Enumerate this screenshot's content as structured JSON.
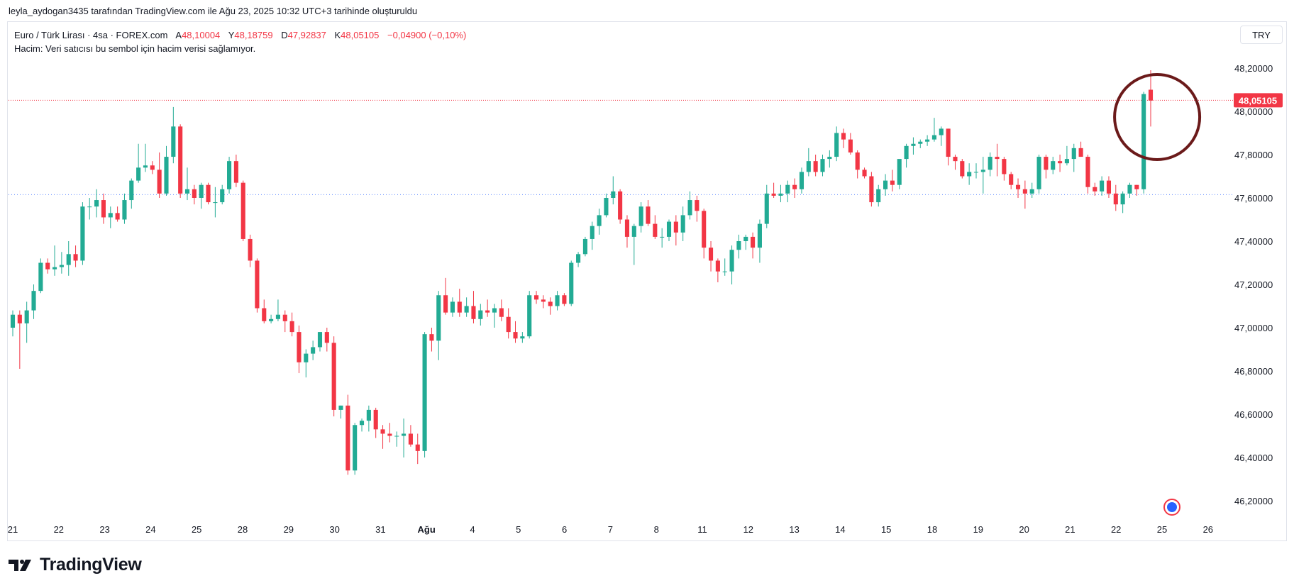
{
  "header": {
    "attribution": "leyla_aydogan3435 tarafından TradingView.com ile Ağu 23, 2025 10:32 UTC+3 tarihinde oluşturuldu"
  },
  "legend": {
    "symbol": "Euro / Türk Lirası · 4sa · FOREX.com",
    "open_label": "A",
    "open": "48,10004",
    "high_label": "Y",
    "high": "48,18759",
    "low_label": "D",
    "low": "47,92837",
    "close_label": "K",
    "close": "48,05105",
    "change": "−0,04900 (−0,10%)",
    "volume_note": "Hacim: Veri satıcısı bu sembol için hacim verisi sağlamıyor."
  },
  "currency_button": "TRY",
  "footer": {
    "brand": "TradingView"
  },
  "colors": {
    "up": "#22ab94",
    "down": "#f23645",
    "price_tag": "#f23645",
    "circle": "#6b1a1a"
  },
  "chart_data": {
    "type": "candlestick",
    "y_axis": {
      "ticks": [
        "48,20000",
        "48,00000",
        "47,80000",
        "47,60000",
        "47,40000",
        "47,20000",
        "47,00000",
        "46,80000",
        "46,60000",
        "46,40000",
        "46,20000"
      ],
      "tick_values": [
        48.2,
        48.0,
        47.8,
        47.6,
        47.4,
        47.2,
        47.0,
        46.8,
        46.6,
        46.4,
        46.2
      ],
      "range": [
        46.12,
        48.4
      ]
    },
    "x_axis": {
      "labels": [
        "21",
        "22",
        "23",
        "24",
        "25",
        "28",
        "29",
        "30",
        "31",
        "Ağu",
        "4",
        "5",
        "6",
        "7",
        "8",
        "11",
        "12",
        "13",
        "14",
        "15",
        "18",
        "19",
        "20",
        "21",
        "22",
        "25",
        "26"
      ],
      "bold_labels": [
        "Ağu"
      ]
    },
    "last_price": {
      "value": 48.05105,
      "label": "48,05105"
    },
    "dotted_level": 47.615,
    "annotation": "circle around latest candles",
    "candles": [
      [
        47.0,
        47.08,
        46.96,
        47.06
      ],
      [
        47.06,
        47.08,
        46.81,
        47.02
      ],
      [
        47.02,
        47.12,
        46.93,
        47.08
      ],
      [
        47.08,
        47.2,
        47.04,
        47.17
      ],
      [
        47.17,
        47.32,
        47.16,
        47.3
      ],
      [
        47.3,
        47.32,
        47.25,
        47.27
      ],
      [
        47.27,
        47.38,
        47.24,
        47.28
      ],
      [
        47.28,
        47.35,
        47.25,
        47.29
      ],
      [
        47.29,
        47.4,
        47.24,
        47.34
      ],
      [
        47.34,
        47.38,
        47.28,
        47.31
      ],
      [
        47.31,
        47.58,
        47.29,
        47.56
      ],
      [
        47.56,
        47.6,
        47.5,
        47.56
      ],
      [
        47.56,
        47.64,
        47.51,
        47.59
      ],
      [
        47.59,
        47.62,
        47.48,
        47.51
      ],
      [
        47.51,
        47.56,
        47.46,
        47.53
      ],
      [
        47.53,
        47.56,
        47.49,
        47.5
      ],
      [
        47.5,
        47.62,
        47.48,
        47.59
      ],
      [
        47.59,
        47.69,
        47.55,
        47.68
      ],
      [
        47.68,
        47.85,
        47.67,
        47.74
      ],
      [
        47.74,
        47.85,
        47.72,
        47.75
      ],
      [
        47.75,
        47.77,
        47.71,
        47.73
      ],
      [
        47.73,
        47.81,
        47.6,
        47.62
      ],
      [
        47.62,
        47.84,
        47.61,
        47.79
      ],
      [
        47.79,
        48.02,
        47.76,
        47.93
      ],
      [
        47.93,
        47.94,
        47.6,
        47.62
      ],
      [
        47.62,
        47.74,
        47.59,
        47.64
      ],
      [
        47.64,
        47.66,
        47.57,
        47.6
      ],
      [
        47.6,
        47.67,
        47.55,
        47.66
      ],
      [
        47.66,
        47.67,
        47.57,
        47.58
      ],
      [
        47.58,
        47.65,
        47.51,
        47.58
      ],
      [
        47.58,
        47.66,
        47.57,
        47.64
      ],
      [
        47.64,
        47.79,
        47.62,
        47.77
      ],
      [
        47.77,
        47.8,
        47.65,
        47.67
      ],
      [
        47.67,
        47.68,
        47.4,
        47.41
      ],
      [
        47.41,
        47.43,
        47.28,
        47.31
      ],
      [
        47.31,
        47.32,
        47.07,
        47.09
      ],
      [
        47.09,
        47.13,
        47.02,
        47.03
      ],
      [
        47.03,
        47.06,
        47.02,
        47.04
      ],
      [
        47.04,
        47.13,
        47.03,
        47.06
      ],
      [
        47.06,
        47.08,
        46.98,
        47.03
      ],
      [
        47.03,
        47.07,
        46.96,
        46.98
      ],
      [
        46.98,
        47.01,
        46.79,
        46.84
      ],
      [
        46.84,
        46.9,
        46.77,
        46.88
      ],
      [
        46.88,
        46.94,
        46.85,
        46.91
      ],
      [
        46.91,
        46.98,
        46.89,
        46.98
      ],
      [
        46.98,
        47.0,
        46.89,
        46.93
      ],
      [
        46.93,
        46.96,
        46.59,
        46.62
      ],
      [
        46.62,
        46.64,
        46.58,
        46.64
      ],
      [
        46.64,
        46.69,
        46.32,
        46.34
      ],
      [
        46.34,
        46.56,
        46.32,
        46.55
      ],
      [
        46.55,
        46.58,
        46.52,
        46.57
      ],
      [
        46.57,
        46.64,
        46.52,
        46.62
      ],
      [
        46.62,
        46.63,
        46.49,
        46.53
      ],
      [
        46.53,
        46.55,
        46.44,
        46.51
      ],
      [
        46.51,
        46.56,
        46.47,
        46.5
      ],
      [
        46.5,
        46.52,
        46.45,
        46.5
      ],
      [
        46.5,
        46.58,
        46.4,
        46.51
      ],
      [
        46.51,
        46.55,
        46.45,
        46.46
      ],
      [
        46.46,
        46.51,
        46.37,
        46.43
      ],
      [
        46.43,
        46.98,
        46.4,
        46.97
      ],
      [
        46.97,
        47.0,
        46.89,
        46.94
      ],
      [
        46.94,
        47.17,
        46.85,
        47.15
      ],
      [
        47.15,
        47.23,
        47.06,
        47.07
      ],
      [
        47.07,
        47.14,
        47.05,
        47.12
      ],
      [
        47.12,
        47.18,
        47.05,
        47.07
      ],
      [
        47.07,
        47.14,
        47.05,
        47.1
      ],
      [
        47.1,
        47.17,
        47.02,
        47.04
      ],
      [
        47.04,
        47.11,
        47.01,
        47.08
      ],
      [
        47.08,
        47.13,
        47.05,
        47.07
      ],
      [
        47.07,
        47.11,
        47.0,
        47.09
      ],
      [
        47.09,
        47.13,
        47.03,
        47.05
      ],
      [
        47.05,
        47.09,
        46.95,
        46.98
      ],
      [
        46.98,
        47.03,
        46.93,
        46.95
      ],
      [
        46.95,
        46.98,
        46.93,
        46.96
      ],
      [
        46.96,
        47.17,
        46.95,
        47.15
      ],
      [
        47.15,
        47.17,
        47.11,
        47.13
      ],
      [
        47.13,
        47.15,
        47.09,
        47.12
      ],
      [
        47.12,
        47.14,
        47.06,
        47.1
      ],
      [
        47.1,
        47.17,
        47.08,
        47.15
      ],
      [
        47.15,
        47.16,
        47.1,
        47.11
      ],
      [
        47.11,
        47.31,
        47.1,
        47.3
      ],
      [
        47.3,
        47.35,
        47.28,
        47.34
      ],
      [
        47.34,
        47.42,
        47.33,
        47.41
      ],
      [
        47.41,
        47.49,
        47.36,
        47.47
      ],
      [
        47.47,
        47.55,
        47.43,
        47.52
      ],
      [
        47.52,
        47.62,
        47.51,
        47.6
      ],
      [
        47.6,
        47.7,
        47.57,
        47.63
      ],
      [
        47.63,
        47.64,
        47.48,
        47.5
      ],
      [
        47.5,
        47.52,
        47.37,
        47.42
      ],
      [
        47.42,
        47.48,
        47.29,
        47.47
      ],
      [
        47.47,
        47.58,
        47.44,
        47.56
      ],
      [
        47.56,
        47.59,
        47.47,
        47.48
      ],
      [
        47.48,
        47.52,
        47.41,
        47.42
      ],
      [
        47.42,
        47.46,
        47.37,
        47.42
      ],
      [
        47.42,
        47.5,
        47.4,
        47.49
      ],
      [
        47.49,
        47.52,
        47.38,
        47.44
      ],
      [
        47.44,
        47.56,
        47.4,
        47.52
      ],
      [
        47.52,
        47.63,
        47.5,
        47.59
      ],
      [
        47.59,
        47.61,
        47.49,
        47.54
      ],
      [
        47.54,
        47.55,
        47.32,
        47.37
      ],
      [
        47.37,
        47.4,
        47.26,
        47.31
      ],
      [
        47.31,
        47.32,
        47.21,
        47.26
      ],
      [
        47.26,
        47.32,
        47.24,
        47.26
      ],
      [
        47.26,
        47.38,
        47.2,
        47.36
      ],
      [
        47.36,
        47.43,
        47.32,
        47.4
      ],
      [
        47.4,
        47.43,
        47.36,
        47.42
      ],
      [
        47.42,
        47.44,
        47.32,
        47.37
      ],
      [
        47.37,
        47.5,
        47.3,
        47.48
      ],
      [
        47.48,
        47.66,
        47.46,
        47.62
      ],
      [
        47.62,
        47.67,
        47.6,
        47.61
      ],
      [
        47.61,
        47.66,
        47.58,
        47.62
      ],
      [
        47.62,
        47.68,
        47.58,
        47.66
      ],
      [
        47.66,
        47.69,
        47.6,
        47.64
      ],
      [
        47.64,
        47.74,
        47.62,
        47.72
      ],
      [
        47.72,
        47.83,
        47.7,
        47.77
      ],
      [
        47.77,
        47.8,
        47.7,
        47.72
      ],
      [
        47.72,
        47.8,
        47.7,
        47.78
      ],
      [
        47.78,
        47.82,
        47.74,
        47.79
      ],
      [
        47.79,
        47.93,
        47.77,
        47.9
      ],
      [
        47.9,
        47.92,
        47.83,
        47.87
      ],
      [
        47.87,
        47.9,
        47.8,
        47.81
      ],
      [
        47.81,
        47.82,
        47.69,
        47.73
      ],
      [
        47.73,
        47.74,
        47.69,
        47.7
      ],
      [
        47.7,
        47.72,
        47.56,
        47.58
      ],
      [
        47.58,
        47.66,
        47.56,
        47.64
      ],
      [
        47.64,
        47.71,
        47.61,
        47.68
      ],
      [
        47.68,
        47.73,
        47.63,
        47.66
      ],
      [
        47.66,
        47.77,
        47.64,
        47.78
      ],
      [
        47.78,
        47.85,
        47.74,
        47.84
      ],
      [
        47.84,
        47.88,
        47.8,
        47.85
      ],
      [
        47.85,
        47.87,
        47.83,
        47.86
      ],
      [
        47.86,
        47.89,
        47.84,
        47.87
      ],
      [
        47.87,
        47.97,
        47.86,
        47.89
      ],
      [
        47.89,
        47.93,
        47.84,
        47.92
      ],
      [
        47.92,
        47.92,
        47.75,
        47.79
      ],
      [
        47.79,
        47.8,
        47.73,
        47.77
      ],
      [
        47.77,
        47.78,
        47.69,
        47.7
      ],
      [
        47.7,
        47.76,
        47.66,
        47.72
      ],
      [
        47.72,
        47.76,
        47.69,
        47.72
      ],
      [
        47.72,
        47.79,
        47.62,
        47.73
      ],
      [
        47.73,
        47.81,
        47.7,
        47.79
      ],
      [
        47.79,
        47.85,
        47.7,
        47.78
      ],
      [
        47.78,
        47.79,
        47.68,
        47.71
      ],
      [
        47.71,
        47.72,
        47.64,
        47.66
      ],
      [
        47.66,
        47.69,
        47.6,
        47.64
      ],
      [
        47.64,
        47.68,
        47.55,
        47.62
      ],
      [
        47.62,
        47.67,
        47.6,
        47.64
      ],
      [
        47.64,
        47.8,
        47.62,
        47.79
      ],
      [
        47.79,
        47.8,
        47.69,
        47.73
      ],
      [
        47.73,
        47.79,
        47.71,
        47.77
      ],
      [
        47.77,
        47.8,
        47.72,
        47.76
      ],
      [
        47.76,
        47.84,
        47.75,
        47.78
      ],
      [
        47.78,
        47.85,
        47.72,
        47.83
      ],
      [
        47.83,
        47.86,
        47.79,
        47.79
      ],
      [
        47.79,
        47.8,
        47.62,
        47.65
      ],
      [
        47.65,
        47.67,
        47.61,
        47.63
      ],
      [
        47.63,
        47.7,
        47.61,
        47.68
      ],
      [
        47.68,
        47.7,
        47.6,
        47.62
      ],
      [
        47.62,
        47.66,
        47.54,
        47.57
      ],
      [
        47.57,
        47.63,
        47.53,
        47.62
      ],
      [
        47.62,
        47.67,
        47.6,
        47.66
      ],
      [
        47.66,
        47.66,
        47.61,
        47.64
      ],
      [
        47.64,
        48.09,
        47.62,
        48.08
      ],
      [
        48.1,
        48.19,
        47.93,
        48.05
      ]
    ]
  }
}
